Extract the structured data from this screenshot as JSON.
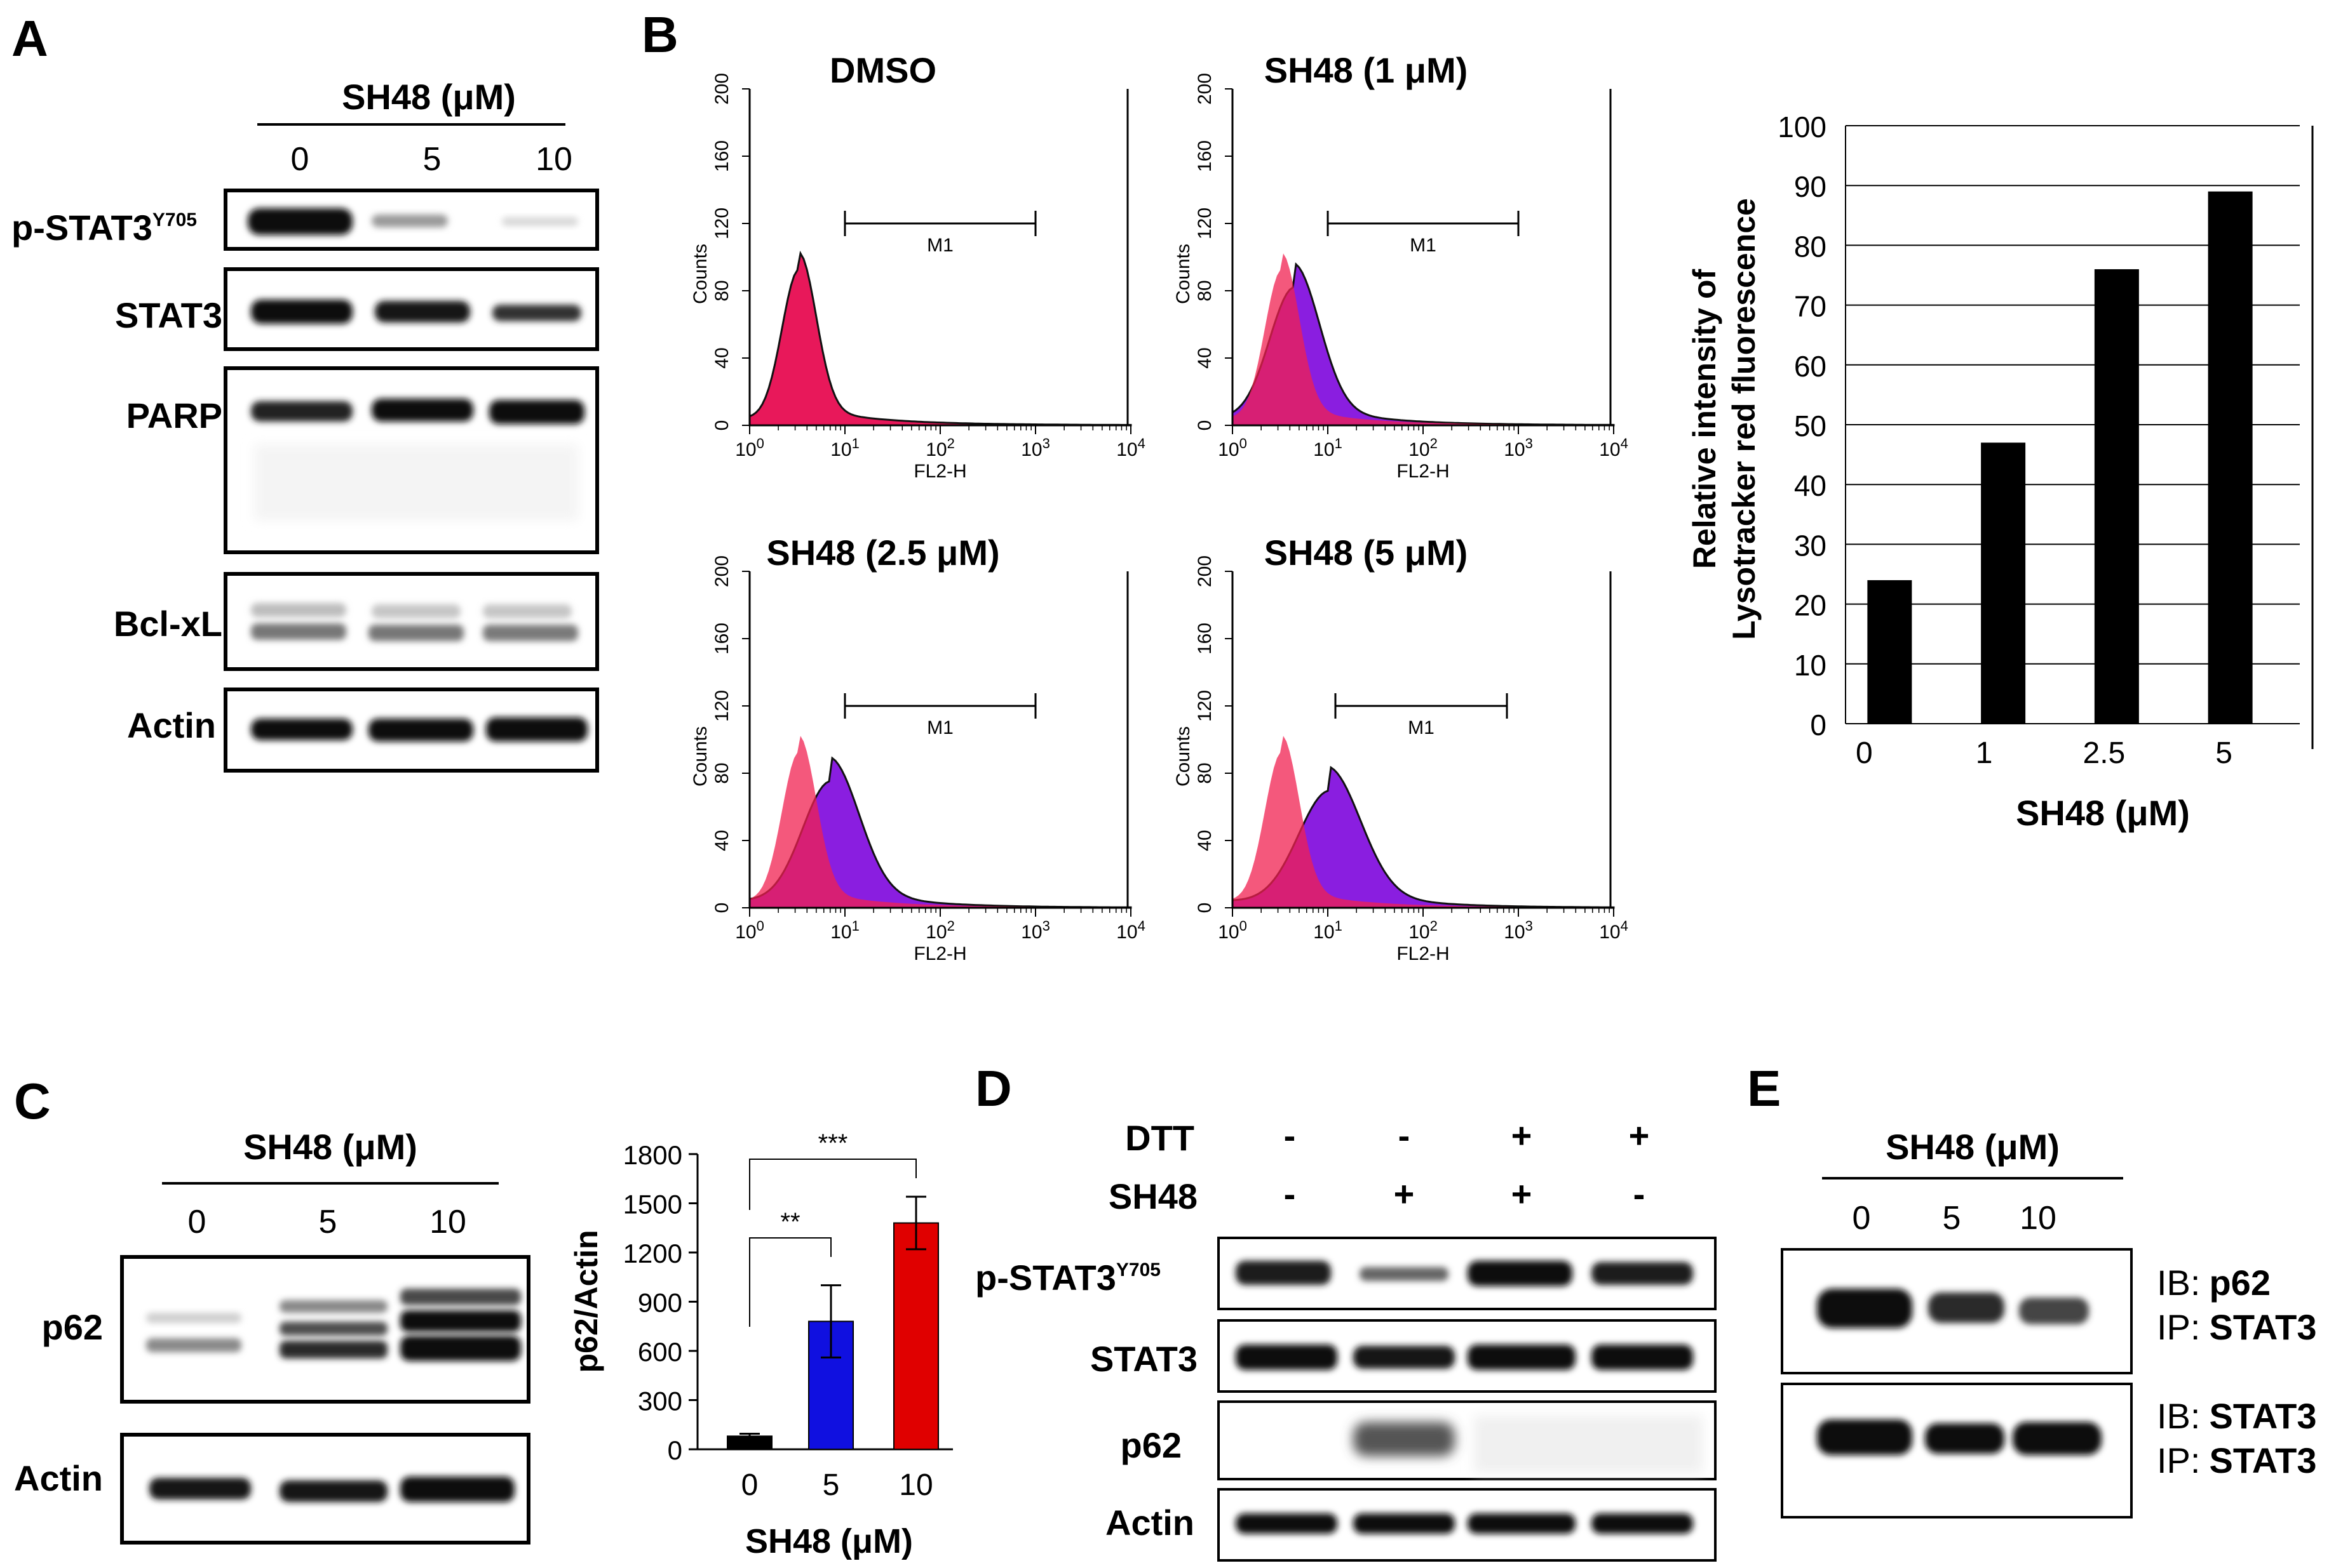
{
  "panels": {
    "A": {
      "label": "A",
      "header": "SH48 (μM)",
      "lanes": [
        "0",
        "5",
        "10"
      ],
      "rows": [
        {
          "name": "p-STAT3",
          "sup": "Y705"
        },
        {
          "name": "STAT3",
          "sup": ""
        },
        {
          "name": "PARP",
          "sup": ""
        },
        {
          "name": "Bcl-xL",
          "sup": ""
        },
        {
          "name": "Actin",
          "sup": ""
        }
      ]
    },
    "B": {
      "label": "B",
      "histograms": [
        {
          "title": "DMSO",
          "shift": 0.0
        },
        {
          "title": "SH48 (1 μM)",
          "shift": 0.12
        },
        {
          "title": "SH48 (2.5 μM)",
          "shift": 0.3
        },
        {
          "title": "SH48 (5 μM)",
          "shift": 0.45
        }
      ],
      "hist_axis": {
        "y_label": "Counts",
        "y_ticks": [
          "0",
          "40",
          "80",
          "120",
          "160",
          "200"
        ],
        "x_label": "FL2-H",
        "x_ticks": [
          {
            "base": "10",
            "exp": "0"
          },
          {
            "base": "10",
            "exp": "1"
          },
          {
            "base": "10",
            "exp": "2"
          },
          {
            "base": "10",
            "exp": "3"
          },
          {
            "base": "10",
            "exp": "4"
          }
        ],
        "marker": "M1"
      }
    },
    "C": {
      "label": "C",
      "header": "SH48 (μM)",
      "lanes": [
        "0",
        "5",
        "10"
      ],
      "rows": [
        "p62",
        "Actin"
      ]
    },
    "D": {
      "label": "D",
      "conditions": [
        {
          "name": "DTT",
          "values": [
            "-",
            "-",
            "+",
            "+"
          ]
        },
        {
          "name": "SH48",
          "values": [
            "-",
            "+",
            "+",
            "-"
          ]
        }
      ],
      "rows": [
        {
          "name": "p-STAT3",
          "sup": "Y705"
        },
        {
          "name": "STAT3",
          "sup": ""
        },
        {
          "name": "p62",
          "sup": ""
        },
        {
          "name": "Actin",
          "sup": ""
        }
      ]
    },
    "E": {
      "label": "E",
      "header": "SH48 (μM)",
      "lanes": [
        "0",
        "5",
        "10"
      ],
      "blots": [
        {
          "ib_prefix": "IB:",
          "ib": "p62",
          "ip_prefix": "IP:",
          "ip": "STAT3"
        },
        {
          "ib_prefix": "IB:",
          "ib": "STAT3",
          "ip_prefix": "IP:",
          "ip": "STAT3"
        }
      ]
    }
  },
  "chart_data": [
    {
      "id": "B-bar",
      "type": "bar",
      "categories": [
        "0",
        "1",
        "2.5",
        "5"
      ],
      "values": [
        24,
        47,
        76,
        89
      ],
      "ylim": [
        0,
        100
      ],
      "yticks": [
        "0",
        "10",
        "20",
        "30",
        "40",
        "50",
        "60",
        "70",
        "80",
        "90",
        "100"
      ],
      "ylabel_line1": "Relative intensity of",
      "ylabel_line2": "Lysotracker red fluorescence",
      "xlabel": "SH48 (μM)",
      "bar_color": "#000000"
    },
    {
      "id": "C-bar",
      "type": "bar",
      "categories": [
        "0",
        "5",
        "10"
      ],
      "values": [
        80,
        780,
        1380
      ],
      "errors": [
        15,
        220,
        160
      ],
      "colors": [
        "#000000",
        "#1010e0",
        "#e00000"
      ],
      "ylim": [
        0,
        1800
      ],
      "yticks": [
        "0",
        "300",
        "600",
        "900",
        "1200",
        "1500",
        "1800"
      ],
      "ylabel": "p62/Actin",
      "xlabel": "SH48 (μM)",
      "significance": [
        {
          "from": 0,
          "to": 1,
          "text": "**"
        },
        {
          "from": 0,
          "to": 2,
          "text": "***"
        }
      ]
    }
  ]
}
